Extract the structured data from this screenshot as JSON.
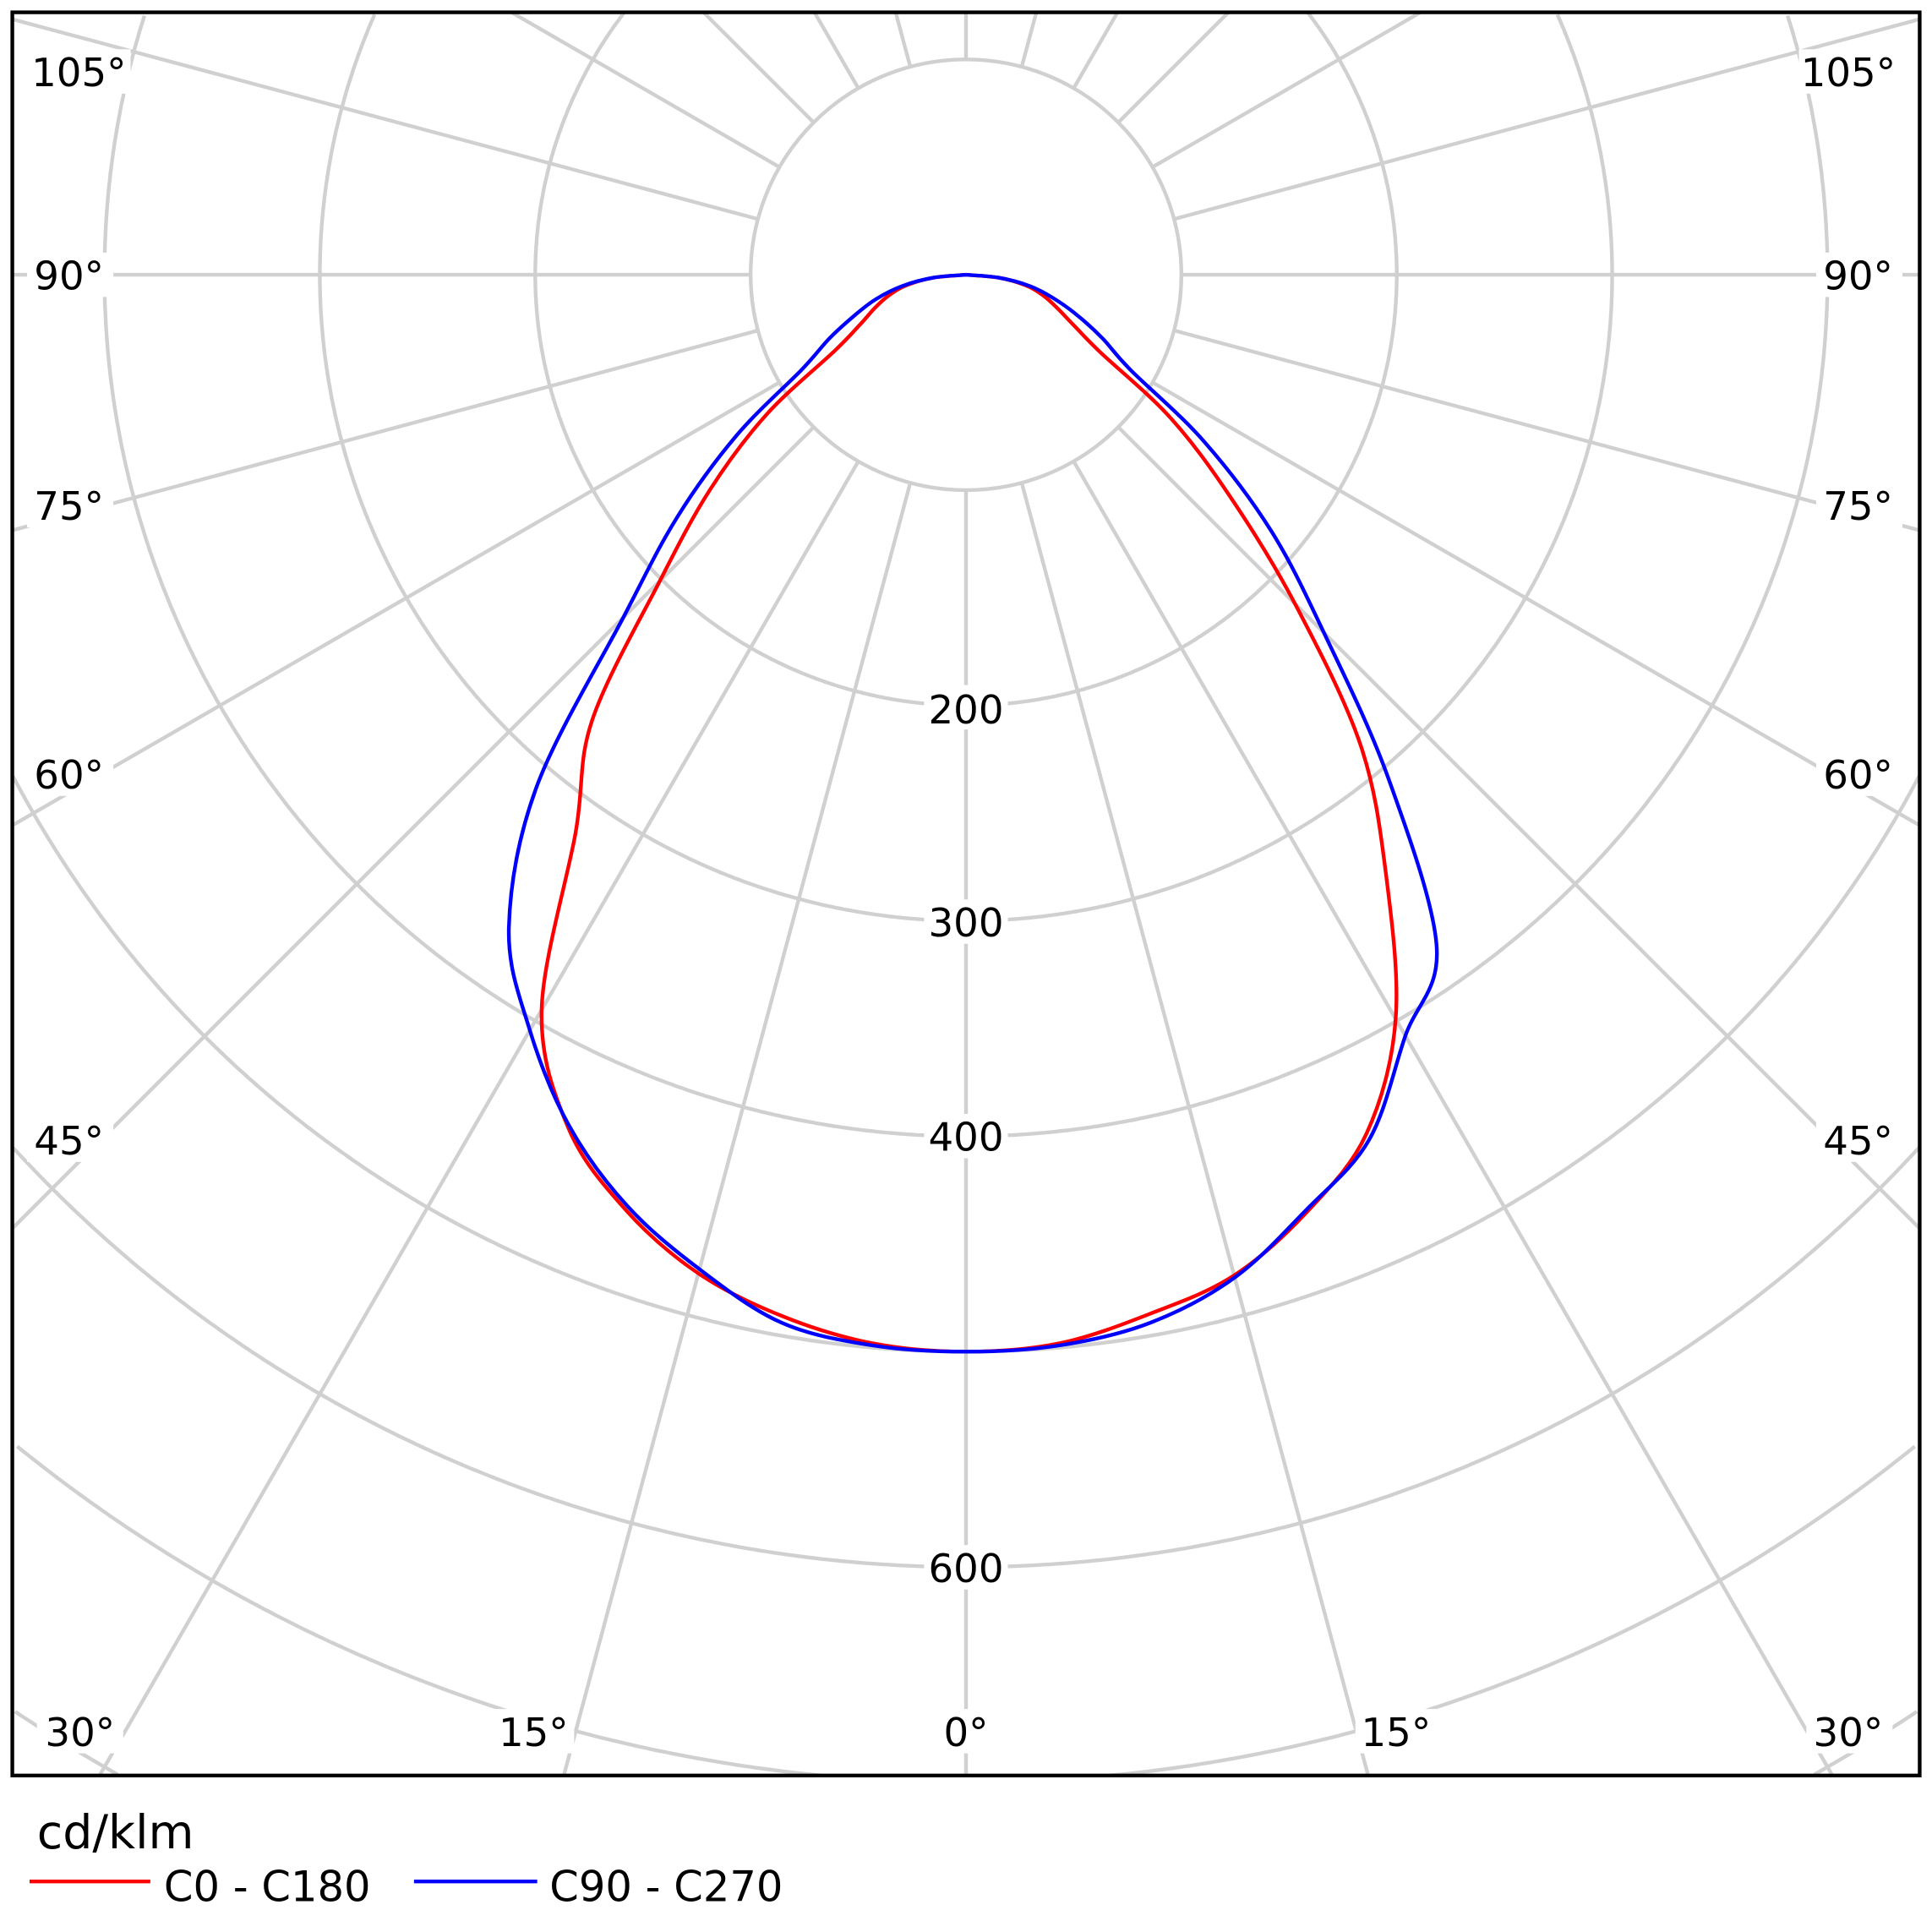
{
  "chart_data": {
    "type": "polar",
    "title": "",
    "unit": "cd/klm",
    "radial_ticks": [
      100,
      200,
      300,
      400,
      500,
      600,
      700,
      800,
      900
    ],
    "radial_labels": [
      "200",
      "300",
      "400",
      "600"
    ],
    "angle_labels": {
      "left_side": [
        "105°",
        "90°",
        "75°",
        "60°",
        "45°"
      ],
      "right_side": [
        "105°",
        "90°",
        "75°",
        "60°",
        "45°"
      ],
      "bottom": [
        "30°",
        "15°",
        "0°",
        "15°",
        "30°"
      ]
    },
    "gamma": [
      0,
      5,
      10,
      15,
      20,
      25,
      30,
      35,
      40,
      45,
      50,
      55,
      60,
      65,
      70,
      75,
      80,
      85,
      90
    ],
    "series": [
      {
        "name": "C0 - C180",
        "color": "#ff0000",
        "left": [
          500,
          498,
          491,
          480,
          462,
          437,
          394,
          316,
          270,
          201,
          155,
          113,
          70,
          54,
          45,
          37,
          28,
          15,
          0
        ],
        "right": [
          500,
          498,
          490,
          481,
          463,
          440,
          399,
          340,
          285,
          216,
          160,
          116,
          72,
          55,
          45,
          37,
          28,
          15,
          0
        ]
      },
      {
        "name": "C90 - C270",
        "color": "#0000ff",
        "left": [
          500,
          499,
          494,
          478,
          460,
          436,
          405,
          370,
          310,
          225,
          175,
          130,
          88,
          70,
          55,
          43,
          30,
          15,
          0
        ],
        "right": [
          500,
          499,
          494,
          482,
          462,
          443,
          408,
          381,
          305,
          235,
          185,
          135,
          88,
          70,
          55,
          42,
          30,
          15,
          0
        ]
      }
    ]
  }
}
